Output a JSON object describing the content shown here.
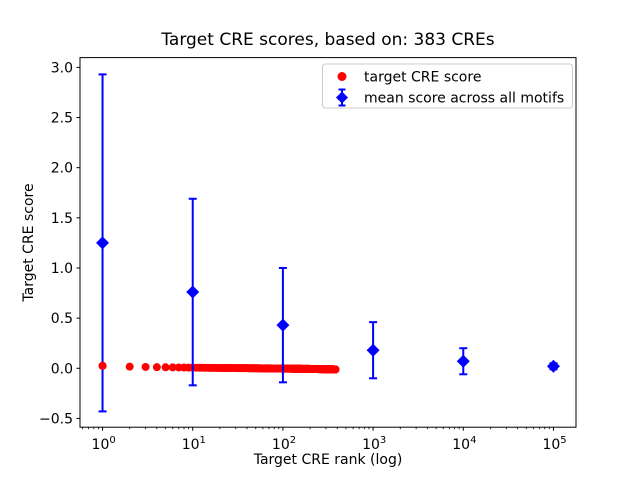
{
  "figure": {
    "background": "#ffffff"
  },
  "colors": {
    "red": "#ff0000",
    "blue": "#0000ff",
    "axis": "#000000",
    "legend_border": "#cccccc",
    "legend_face": "#ffffff"
  },
  "chart_data": {
    "type": "scatter",
    "title": "Target CRE scores, based on: 383 CREs",
    "xlabel": "Target CRE rank (log)",
    "ylabel": "Target CRE score",
    "x_scale": "log",
    "grid": false,
    "xlim_log10": [
      -0.25,
      5.25
    ],
    "ylim": [
      -0.5875,
      3.0975
    ],
    "x_tick_exponents": [
      0,
      1,
      2,
      3,
      4,
      5
    ],
    "x_tick_base": "10",
    "y_ticks": [
      3.0,
      2.5,
      2.0,
      1.5,
      1.0,
      0.5,
      0.0,
      -0.5
    ],
    "y_tick_labels": [
      "3.0",
      "2.5",
      "2.0",
      "1.5",
      "1.0",
      "0.5",
      "0.0",
      "−0.5"
    ],
    "legend_position": "upper right",
    "legend": [
      {
        "label": "target CRE score",
        "marker": "circle",
        "color": "#ff0000"
      },
      {
        "label": "mean score across all motifs",
        "marker": "diamond-errorbar",
        "color": "#0000ff"
      }
    ],
    "series": [
      {
        "name": "target CRE score",
        "marker": "circle",
        "color": "#ff0000",
        "n_points": 383,
        "rank_range": [
          1,
          383
        ],
        "sampled_points": [
          [
            1,
            0.025
          ],
          [
            2,
            0.016
          ],
          [
            3,
            0.013
          ],
          [
            4,
            0.011
          ],
          [
            5,
            0.01
          ],
          [
            7,
            0.008
          ],
          [
            10,
            0.006
          ],
          [
            15,
            0.004
          ],
          [
            20,
            0.003
          ],
          [
            30,
            0.002
          ],
          [
            50,
            0.0
          ],
          [
            80,
            -0.002
          ],
          [
            120,
            -0.004
          ],
          [
            180,
            -0.006
          ],
          [
            250,
            -0.008
          ],
          [
            320,
            -0.01
          ],
          [
            383,
            -0.012
          ]
        ]
      },
      {
        "name": "mean score across all motifs",
        "marker": "diamond",
        "color": "#0000ff",
        "x": [
          1,
          10,
          100,
          1000,
          10000,
          100000
        ],
        "mean": [
          1.25,
          0.76,
          0.43,
          0.18,
          0.07,
          0.02
        ],
        "err": [
          1.68,
          0.93,
          0.57,
          0.28,
          0.13,
          0.03
        ]
      }
    ]
  }
}
